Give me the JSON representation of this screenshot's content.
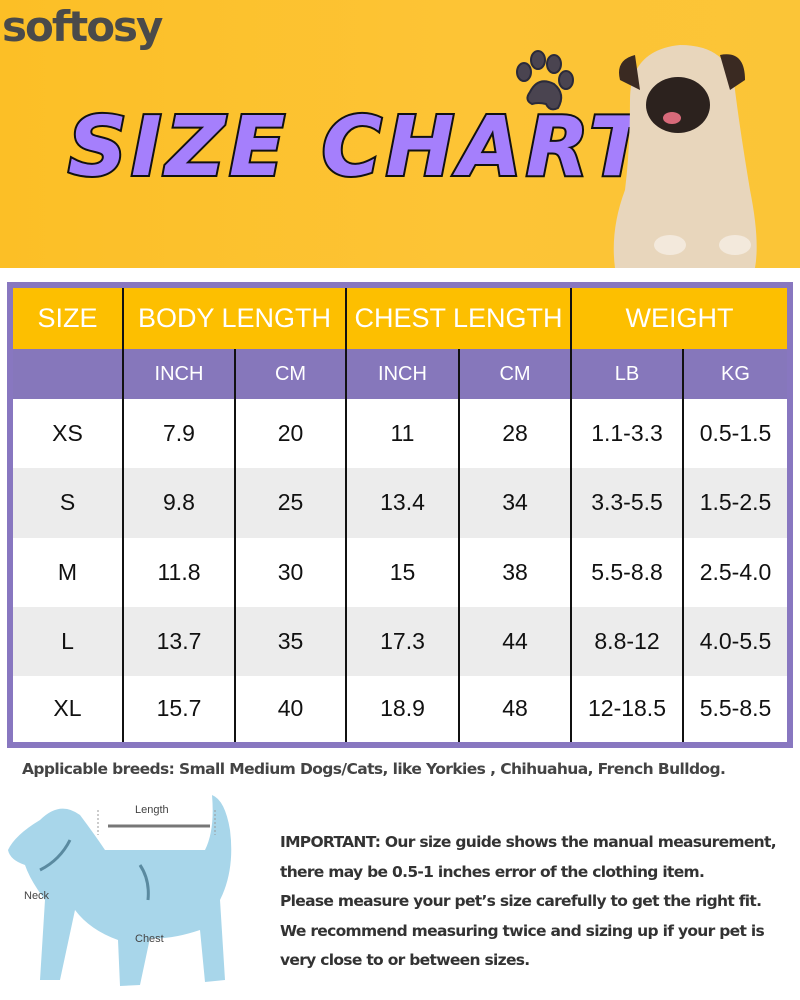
{
  "brand": "softosy",
  "title": "SIZE CHART",
  "colors": {
    "banner": "#fdc02e",
    "title": "#a57ffc",
    "header": "#fdbf00",
    "subheader": "#8677bb",
    "alt_row": "#ececec"
  },
  "table": {
    "groups": [
      "SIZE",
      "BODY LENGTH",
      "CHEST LENGTH",
      "WEIGHT"
    ],
    "units": [
      "INCH",
      "CM",
      "INCH",
      "CM",
      "LB",
      "KG"
    ],
    "rows": [
      [
        "XS",
        "7.9",
        "20",
        "11",
        "28",
        "1.1-3.3",
        "0.5-1.5"
      ],
      [
        "S",
        "9.8",
        "25",
        "13.4",
        "34",
        "3.3-5.5",
        "1.5-2.5"
      ],
      [
        "M",
        "11.8",
        "30",
        "15",
        "38",
        "5.5-8.8",
        "2.5-4.0"
      ],
      [
        "L",
        "13.7",
        "35",
        "17.3",
        "44",
        "8.8-12",
        "4.0-5.5"
      ],
      [
        "XL",
        "15.7",
        "40",
        "18.9",
        "48",
        "12-18.5",
        "5.5-8.5"
      ]
    ]
  },
  "breeds": "Applicable breeds: Small Medium Dogs/Cats, like Yorkies , Chihuahua, French Bulldog.",
  "diagram": {
    "length": "Length",
    "neck": "Neck",
    "chest": "Chest"
  },
  "note": [
    "IMPORTANT: Our size guide shows the manual measurement,",
    "there may be 0.5-1 inches error of the clothing item.",
    "Please measure your pet’s size carefully to get the right fit.",
    "We recommend measuring twice and sizing up if your pet is",
    "very close to or between sizes."
  ]
}
